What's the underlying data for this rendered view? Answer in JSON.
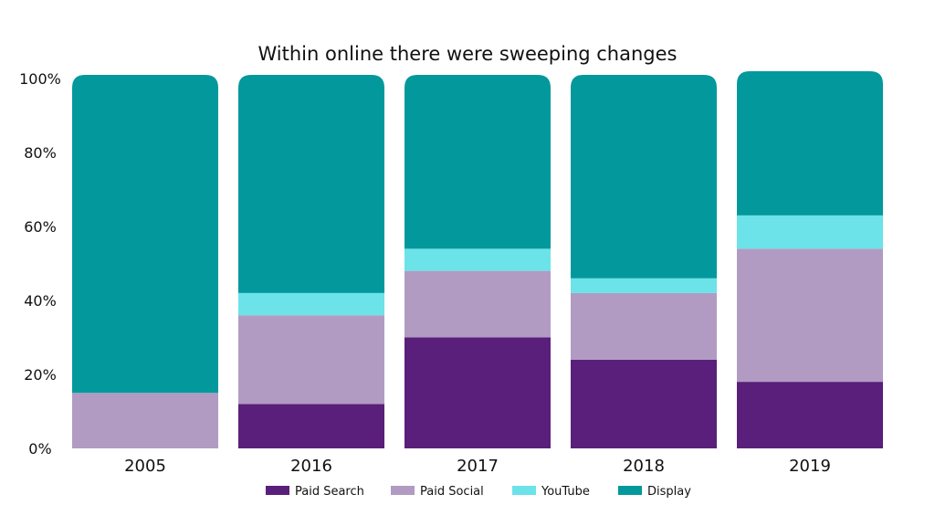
{
  "chart_data": {
    "type": "bar",
    "stacked": true,
    "title": "Within online there were sweeping changes",
    "categories": [
      "2005",
      "2016",
      "2017",
      "2018",
      "2019"
    ],
    "series": [
      {
        "name": "Paid Search",
        "color": "#5a1f7a",
        "values": [
          0,
          12,
          30,
          24,
          18
        ]
      },
      {
        "name": "Paid Social",
        "color": "#b19bc3",
        "values": [
          15,
          24,
          18,
          18,
          36
        ]
      },
      {
        "name": "YouTube",
        "color": "#6be3e8",
        "values": [
          0,
          6,
          6,
          4,
          9
        ]
      },
      {
        "name": "Display",
        "color": "#03999c",
        "values": [
          86,
          59,
          47,
          55,
          39
        ]
      }
    ],
    "y_ticks": [
      "0%",
      "20%",
      "40%",
      "60%",
      "80%",
      "100%"
    ],
    "ylim": [
      0,
      101
    ],
    "grid": false,
    "legend_position": "bottom"
  }
}
